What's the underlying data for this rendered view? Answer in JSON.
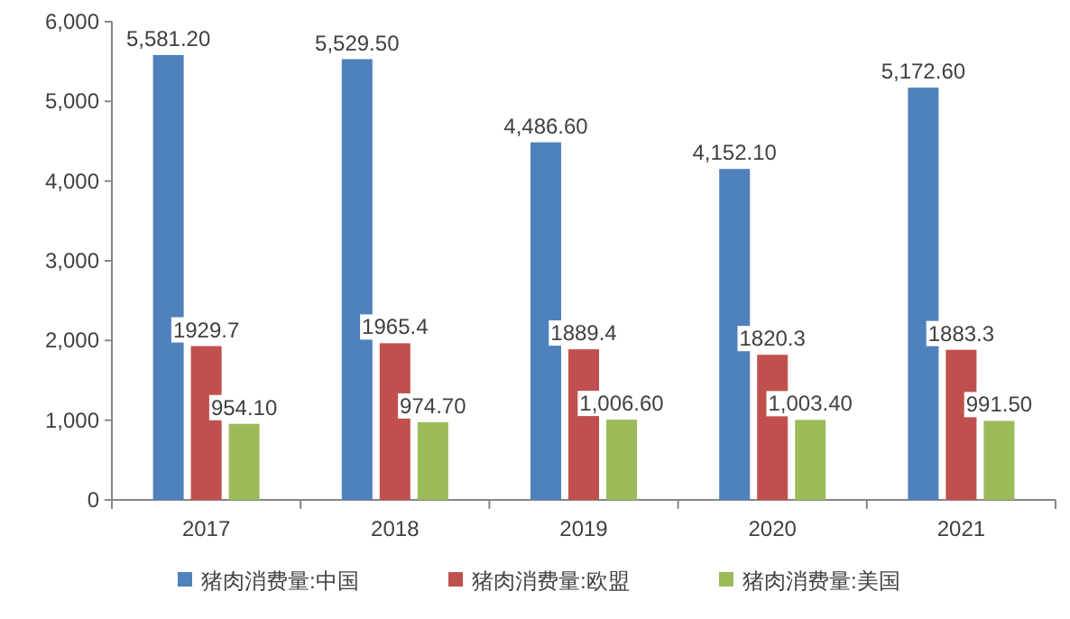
{
  "chart_data": {
    "type": "bar",
    "categories": [
      "2017",
      "2018",
      "2019",
      "2020",
      "2021"
    ],
    "series": [
      {
        "name": "猪肉消费量:中国",
        "color": "#4f81bd",
        "values": [
          5581.2,
          5529.5,
          4486.6,
          4152.1,
          5172.6
        ],
        "value_labels": [
          "5,581.20",
          "5,529.50",
          "4,486.60",
          "4,152.10",
          "5,172.60"
        ]
      },
      {
        "name": "猪肉消费量:欧盟",
        "color": "#c0504d",
        "values": [
          1929.7,
          1965.4,
          1889.4,
          1820.3,
          1883.3
        ],
        "value_labels": [
          "1929.7",
          "1965.4",
          "1889.4",
          "1820.3",
          "1883.3"
        ]
      },
      {
        "name": "猪肉消费量:美国",
        "color": "#9bbb59",
        "values": [
          954.1,
          974.7,
          1006.6,
          1003.4,
          991.5
        ],
        "value_labels": [
          "954.10",
          "974.70",
          "1,006.60",
          "1,003.40",
          "991.50"
        ]
      }
    ],
    "ylim": [
      0,
      6000
    ],
    "yticks": [
      0,
      {
        "value": 1000,
        "label": "1,000"
      },
      {
        "value": 2000,
        "label": "2,000"
      },
      {
        "value": 3000,
        "label": "3,000"
      },
      {
        "value": 4000,
        "label": "4,000"
      },
      {
        "value": 5000,
        "label": "5,000"
      },
      {
        "value": 6000,
        "label": "6,000"
      }
    ],
    "grid": false,
    "legend": "bottom"
  }
}
